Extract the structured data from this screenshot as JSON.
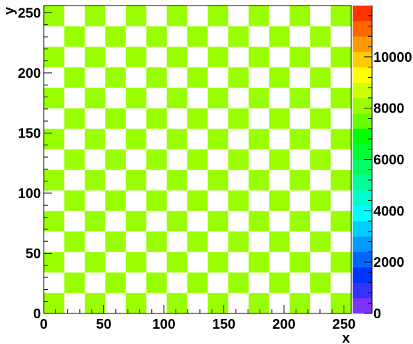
{
  "chart_data": {
    "type": "heatmap",
    "title": "",
    "xlabel": "x",
    "ylabel": "y",
    "xlim": [
      0,
      256
    ],
    "ylim": [
      0,
      256
    ],
    "x_ticks": [
      0,
      50,
      100,
      150,
      200,
      250
    ],
    "y_ticks": [
      0,
      50,
      100,
      150,
      200,
      250
    ],
    "x_tick_labels": [
      "0",
      "50",
      "100",
      "150",
      "200",
      "250"
    ],
    "y_tick_labels": [
      "0",
      "50",
      "100",
      "150",
      "200",
      "250"
    ],
    "pattern": "checkerboard",
    "checker_cells_x": 15,
    "checker_cells_y": 15,
    "filled_value": 8000,
    "empty_value": 0,
    "filled_color": "#99ff00",
    "empty_color": "#ffffff",
    "colorbar": {
      "zlim": [
        0,
        12000
      ],
      "ticks": [
        0,
        2000,
        4000,
        6000,
        8000,
        10000
      ],
      "tick_labels": [
        "0",
        "2000",
        "4000",
        "6000",
        "8000",
        "10000"
      ],
      "colors": [
        "#7f33ff",
        "#3333ff",
        "#0033ff",
        "#0066ff",
        "#0099ff",
        "#00ccff",
        "#00ffff",
        "#00ffcc",
        "#00ff99",
        "#00ff66",
        "#00ff33",
        "#00ff00",
        "#66ff00",
        "#99ff00",
        "#ccff00",
        "#ffff00",
        "#ffcc00",
        "#ff9900",
        "#ff6600",
        "#ff3300"
      ]
    }
  }
}
